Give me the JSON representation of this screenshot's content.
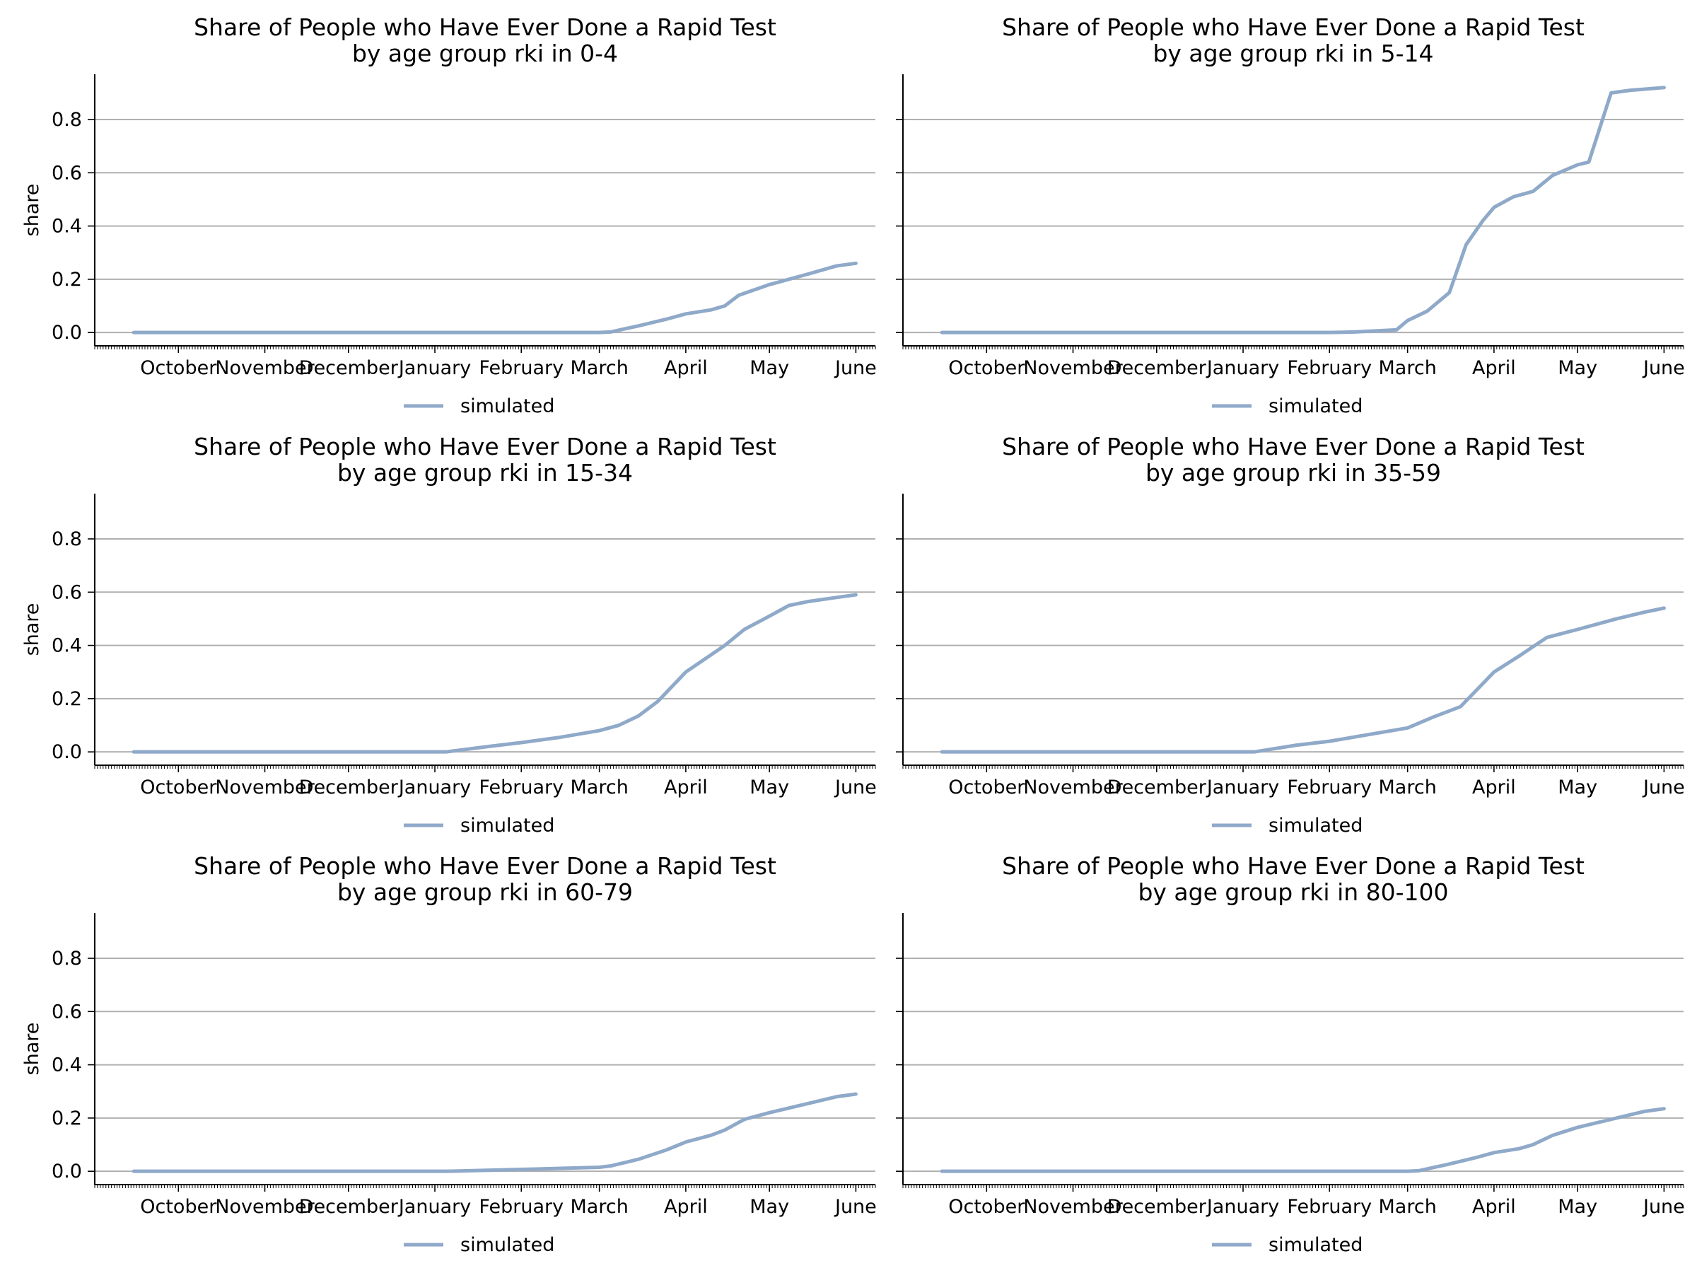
{
  "figure": {
    "background": "#ffffff",
    "line_color": "#8fa9c9",
    "grid_color": "#b0b0b0"
  },
  "chart_data": [
    {
      "type": "line",
      "title": "Share of People who Have Ever Done a Rapid Test",
      "subtitle": "by age group rki in 0-4",
      "ylabel": "share",
      "xlabel": "",
      "x_ticks": [
        "October",
        "November",
        "December",
        "January",
        "February",
        "March",
        "April",
        "May",
        "June"
      ],
      "y_ticks": [
        "0.0",
        "0.2",
        "0.4",
        "0.6",
        "0.8"
      ],
      "ylim": [
        -0.05,
        0.97
      ],
      "grid": "horizontal",
      "legend": "below",
      "series": [
        {
          "name": "simulated",
          "x": [
            "2020-09-15",
            "2020-10-01",
            "2020-11-01",
            "2020-12-01",
            "2021-01-01",
            "2021-02-01",
            "2021-03-01",
            "2021-03-05",
            "2021-03-15",
            "2021-03-25",
            "2021-04-01",
            "2021-04-10",
            "2021-04-15",
            "2021-04-20",
            "2021-05-01",
            "2021-05-15",
            "2021-05-25",
            "2021-06-01"
          ],
          "y": [
            0.0,
            0.0,
            0.0,
            0.0,
            0.0,
            0.0,
            0.0,
            0.002,
            0.025,
            0.05,
            0.07,
            0.085,
            0.1,
            0.14,
            0.18,
            0.22,
            0.25,
            0.26
          ]
        }
      ]
    },
    {
      "type": "line",
      "title": "Share of People who Have Ever Done a Rapid Test",
      "subtitle": "by age group rki in 5-14",
      "ylabel": "",
      "xlabel": "",
      "x_ticks": [
        "October",
        "November",
        "December",
        "January",
        "February",
        "March",
        "April",
        "May",
        "June"
      ],
      "y_ticks": [
        "0.0",
        "0.2",
        "0.4",
        "0.6",
        "0.8"
      ],
      "ylim": [
        -0.05,
        0.97
      ],
      "grid": "horizontal",
      "legend": "below",
      "series": [
        {
          "name": "simulated",
          "x": [
            "2020-09-15",
            "2020-10-01",
            "2020-11-01",
            "2020-12-01",
            "2021-01-01",
            "2021-02-01",
            "2021-02-10",
            "2021-02-25",
            "2021-03-01",
            "2021-03-08",
            "2021-03-16",
            "2021-03-22",
            "2021-03-28",
            "2021-04-01",
            "2021-04-08",
            "2021-04-15",
            "2021-04-22",
            "2021-05-01",
            "2021-05-05",
            "2021-05-13",
            "2021-05-20",
            "2021-06-01"
          ],
          "y": [
            0.0,
            0.0,
            0.0,
            0.0,
            0.0,
            0.0,
            0.002,
            0.01,
            0.045,
            0.08,
            0.15,
            0.33,
            0.42,
            0.47,
            0.51,
            0.53,
            0.59,
            0.63,
            0.64,
            0.9,
            0.91,
            0.92
          ]
        }
      ]
    },
    {
      "type": "line",
      "title": "Share of People who Have Ever Done a Rapid Test",
      "subtitle": "by age group rki in 15-34",
      "ylabel": "share",
      "xlabel": "",
      "x_ticks": [
        "October",
        "November",
        "December",
        "January",
        "February",
        "March",
        "April",
        "May",
        "June"
      ],
      "y_ticks": [
        "0.0",
        "0.2",
        "0.4",
        "0.6",
        "0.8"
      ],
      "ylim": [
        -0.05,
        0.97
      ],
      "grid": "horizontal",
      "legend": "below",
      "series": [
        {
          "name": "simulated",
          "x": [
            "2020-09-15",
            "2020-10-01",
            "2020-11-01",
            "2020-12-01",
            "2021-01-01",
            "2021-01-05",
            "2021-01-20",
            "2021-02-01",
            "2021-02-15",
            "2021-03-01",
            "2021-03-08",
            "2021-03-15",
            "2021-03-22",
            "2021-04-01",
            "2021-04-08",
            "2021-04-15",
            "2021-04-22",
            "2021-05-01",
            "2021-05-08",
            "2021-05-15",
            "2021-05-25",
            "2021-06-01"
          ],
          "y": [
            0.0,
            0.0,
            0.0,
            0.0,
            0.0,
            0.0,
            0.02,
            0.035,
            0.055,
            0.08,
            0.1,
            0.135,
            0.19,
            0.3,
            0.35,
            0.4,
            0.46,
            0.51,
            0.55,
            0.565,
            0.58,
            0.59
          ]
        }
      ]
    },
    {
      "type": "line",
      "title": "Share of People who Have Ever Done a Rapid Test",
      "subtitle": "by age group rki in 35-59",
      "ylabel": "",
      "xlabel": "",
      "x_ticks": [
        "October",
        "November",
        "December",
        "January",
        "February",
        "March",
        "April",
        "May",
        "June"
      ],
      "y_ticks": [
        "0.0",
        "0.2",
        "0.4",
        "0.6",
        "0.8"
      ],
      "ylim": [
        -0.05,
        0.97
      ],
      "grid": "horizontal",
      "legend": "below",
      "series": [
        {
          "name": "simulated",
          "x": [
            "2020-09-15",
            "2020-10-01",
            "2020-11-01",
            "2020-12-01",
            "2021-01-01",
            "2021-01-05",
            "2021-01-20",
            "2021-02-01",
            "2021-02-15",
            "2021-03-01",
            "2021-03-10",
            "2021-03-20",
            "2021-04-01",
            "2021-04-10",
            "2021-04-20",
            "2021-05-01",
            "2021-05-15",
            "2021-05-25",
            "2021-06-01"
          ],
          "y": [
            0.0,
            0.0,
            0.0,
            0.0,
            0.0,
            0.0,
            0.025,
            0.04,
            0.065,
            0.09,
            0.13,
            0.17,
            0.3,
            0.36,
            0.43,
            0.46,
            0.5,
            0.525,
            0.54
          ]
        }
      ]
    },
    {
      "type": "line",
      "title": "Share of People who Have Ever Done a Rapid Test",
      "subtitle": "by age group rki in 60-79",
      "ylabel": "share",
      "xlabel": "",
      "x_ticks": [
        "October",
        "November",
        "December",
        "January",
        "February",
        "March",
        "April",
        "May",
        "June"
      ],
      "y_ticks": [
        "0.0",
        "0.2",
        "0.4",
        "0.6",
        "0.8"
      ],
      "ylim": [
        -0.05,
        0.97
      ],
      "grid": "horizontal",
      "legend": "below",
      "series": [
        {
          "name": "simulated",
          "x": [
            "2020-09-15",
            "2020-10-01",
            "2020-11-01",
            "2020-12-01",
            "2021-01-01",
            "2021-01-05",
            "2021-02-01",
            "2021-03-01",
            "2021-03-05",
            "2021-03-15",
            "2021-03-25",
            "2021-04-01",
            "2021-04-10",
            "2021-04-15",
            "2021-04-22",
            "2021-05-01",
            "2021-05-15",
            "2021-05-25",
            "2021-06-01"
          ],
          "y": [
            0.0,
            0.0,
            0.0,
            0.0,
            0.0,
            0.0,
            0.007,
            0.015,
            0.02,
            0.045,
            0.08,
            0.11,
            0.135,
            0.155,
            0.195,
            0.22,
            0.255,
            0.28,
            0.29
          ]
        }
      ]
    },
    {
      "type": "line",
      "title": "Share of People who Have Ever Done a Rapid Test",
      "subtitle": "by age group rki in 80-100",
      "ylabel": "",
      "xlabel": "",
      "x_ticks": [
        "October",
        "November",
        "December",
        "January",
        "February",
        "March",
        "April",
        "May",
        "June"
      ],
      "y_ticks": [
        "0.0",
        "0.2",
        "0.4",
        "0.6",
        "0.8"
      ],
      "ylim": [
        -0.05,
        0.97
      ],
      "grid": "horizontal",
      "legend": "below",
      "series": [
        {
          "name": "simulated",
          "x": [
            "2020-09-15",
            "2020-10-01",
            "2020-11-01",
            "2020-12-01",
            "2021-01-01",
            "2021-02-01",
            "2021-03-01",
            "2021-03-05",
            "2021-03-15",
            "2021-03-25",
            "2021-04-01",
            "2021-04-10",
            "2021-04-15",
            "2021-04-22",
            "2021-05-01",
            "2021-05-15",
            "2021-05-25",
            "2021-06-01"
          ],
          "y": [
            0.0,
            0.0,
            0.0,
            0.0,
            0.0,
            0.0,
            0.0,
            0.002,
            0.025,
            0.05,
            0.07,
            0.085,
            0.1,
            0.135,
            0.165,
            0.2,
            0.225,
            0.235
          ]
        }
      ]
    }
  ]
}
